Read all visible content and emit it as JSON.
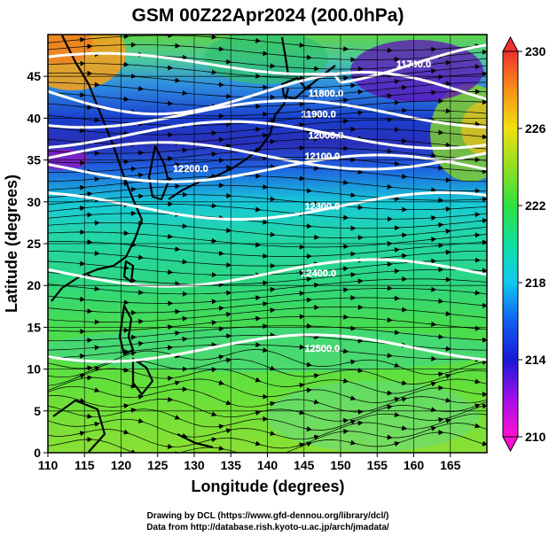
{
  "chart_data": {
    "type": "heatmap",
    "title": "GSM 00Z22Apr2024 (200.0hPa)",
    "xlabel": "Longitude (degrees)",
    "ylabel": "Latitude  (degrees)",
    "xlim": [
      110,
      170
    ],
    "ylim": [
      0,
      50
    ],
    "x_ticks": [
      "110",
      "115",
      "120",
      "125",
      "130",
      "135",
      "140",
      "145",
      "150",
      "155",
      "160",
      "165"
    ],
    "y_ticks": [
      "0",
      "5",
      "10",
      "15",
      "20",
      "25",
      "30",
      "35",
      "40",
      "45"
    ],
    "colorbar": {
      "min": 210,
      "max": 230,
      "ticks": [
        "210",
        "214",
        "218",
        "222",
        "226",
        "230"
      ],
      "unit": ""
    },
    "grid": true,
    "contour_levels": [
      {
        "label": "11700.0",
        "x": 160,
        "y": 46.5
      },
      {
        "label": "11800.0",
        "x": 148,
        "y": 43
      },
      {
        "label": "11900.0",
        "x": 147,
        "y": 40.5
      },
      {
        "label": "12000.0",
        "x": 148,
        "y": 38
      },
      {
        "label": "12100.0",
        "x": 147.5,
        "y": 35.5
      },
      {
        "label": "12200.0",
        "x": 129.5,
        "y": 34
      },
      {
        "label": "12300.0",
        "x": 147.5,
        "y": 29.5
      },
      {
        "label": "12400.0",
        "x": 147,
        "y": 21.5
      },
      {
        "label": "12500.0",
        "x": 147.5,
        "y": 12.5
      }
    ]
  },
  "credits": {
    "line1": "Drawing by DCL (https://www.gfd-dennou.org/library/dcl/)",
    "line2": "Data from http://database.rish.kyoto-u.ac.jp/arch/jmadata/"
  }
}
